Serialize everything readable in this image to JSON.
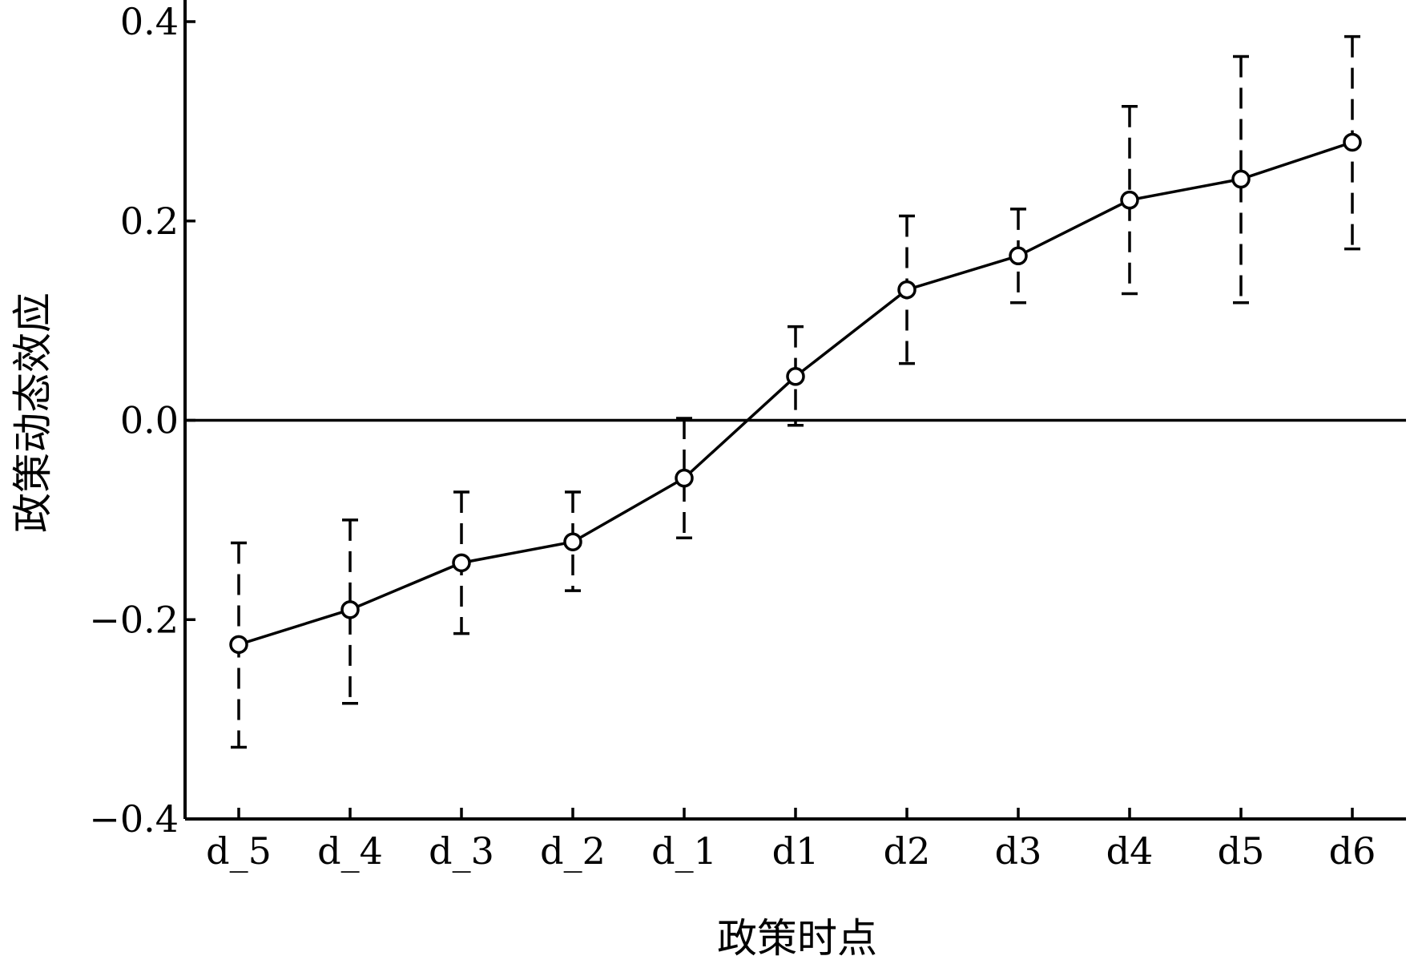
{
  "chart_data": {
    "type": "line",
    "title": "",
    "xlabel": "政策时点",
    "ylabel": "政策动态效应",
    "categories": [
      "d_5",
      "d_4",
      "d_3",
      "d_2",
      "d_1",
      "d1",
      "d2",
      "d3",
      "d4",
      "d5",
      "d6"
    ],
    "series": [
      {
        "values": [
          -0.225,
          -0.19,
          -0.143,
          -0.122,
          -0.058,
          0.044,
          0.131,
          0.165,
          0.221,
          0.242,
          0.279
        ],
        "ci_lower": [
          -0.328,
          -0.284,
          -0.214,
          -0.171,
          -0.118,
          -0.005,
          0.057,
          0.118,
          0.127,
          0.118,
          0.172
        ],
        "ci_upper": [
          -0.123,
          -0.1,
          -0.072,
          -0.072,
          0.002,
          0.094,
          0.205,
          0.212,
          0.315,
          0.365,
          0.385
        ]
      }
    ],
    "ylim": [
      -0.4,
      0.4
    ],
    "yticks": [
      -0.4,
      -0.2,
      0.0,
      0.2,
      0.4
    ],
    "ytick_labels": [
      "−0.4",
      "−0.2",
      "0.0",
      "0.2",
      "0.4"
    ],
    "reference_line_y": 0.0,
    "marker": "open-circle",
    "error_bar_style": "dashed",
    "grid": false,
    "colors": {
      "line": "#000000",
      "background": "#ffffff"
    }
  }
}
